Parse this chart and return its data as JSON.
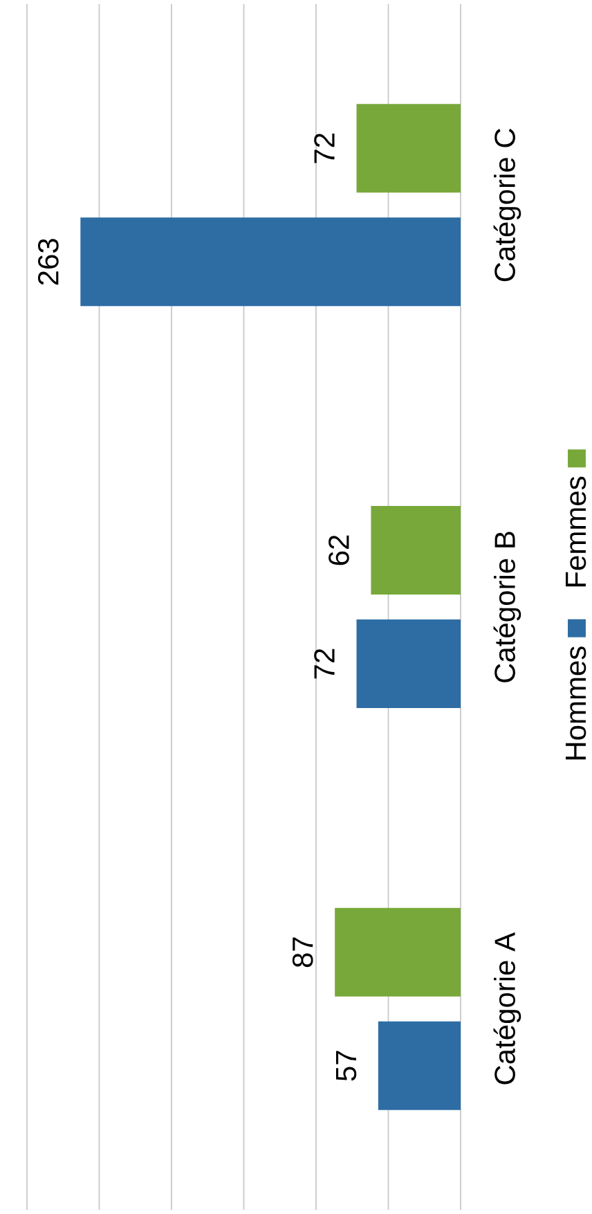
{
  "chart_data": {
    "type": "bar",
    "orientation": "horizontal",
    "categories": [
      "Catégorie C",
      "Catégorie B",
      "Catégorie A"
    ],
    "series": [
      {
        "name": "Hommes",
        "color": "#2e6da4",
        "values": [
          263,
          72,
          57
        ]
      },
      {
        "name": "Femmes",
        "color": "#79a83a",
        "values": [
          72,
          62,
          87
        ]
      }
    ],
    "xlim": [
      300,
      0
    ],
    "xticks": [
      {
        "value": 300,
        "label": null
      },
      {
        "value": 250,
        "label": null
      },
      {
        "value": 200,
        "label": null
      },
      {
        "value": 150,
        "label": null
      },
      {
        "value": 100,
        "label": null
      },
      {
        "value": 50,
        "label": null
      },
      {
        "value": 0,
        "label": null
      }
    ],
    "grid": "x",
    "data_labels": true,
    "legend": "right"
  }
}
